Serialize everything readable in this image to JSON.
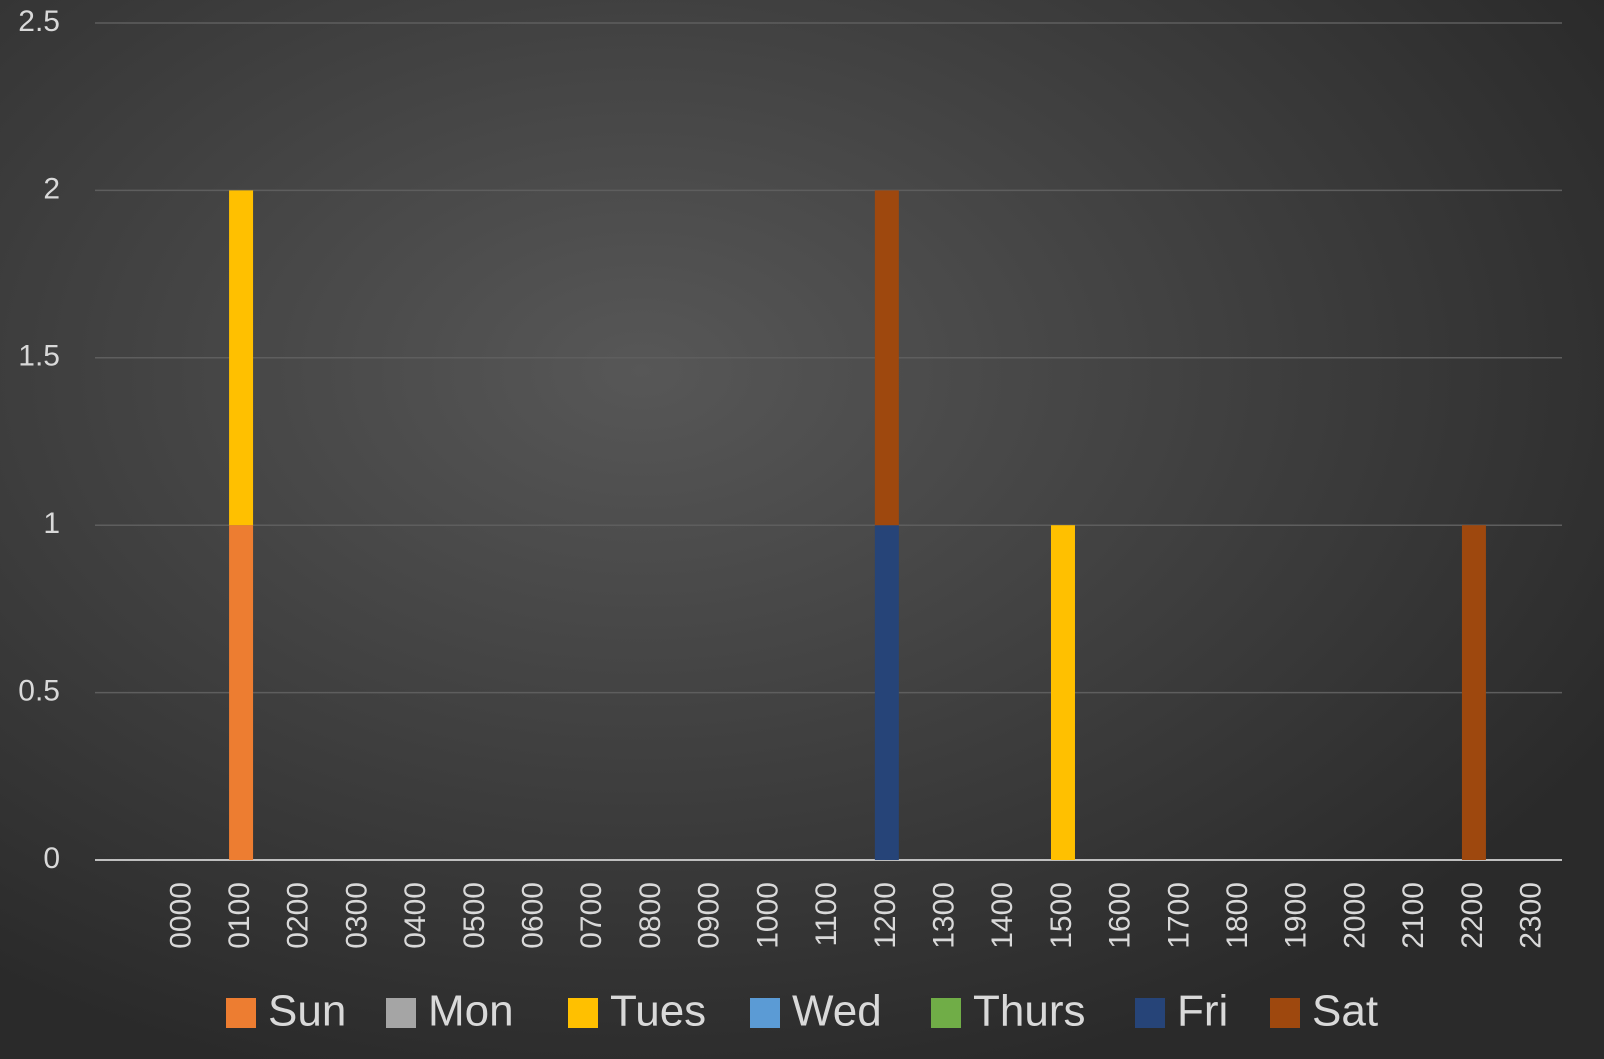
{
  "chart_data": {
    "type": "stacked_bar",
    "categories": [
      "0000",
      "0100",
      "0200",
      "0300",
      "0400",
      "0500",
      "0600",
      "0700",
      "0800",
      "0900",
      "1000",
      "1100",
      "1200",
      "1300",
      "1400",
      "1500",
      "1600",
      "1700",
      "1800",
      "1900",
      "2000",
      "2100",
      "2200",
      "2300"
    ],
    "series": [
      {
        "name": "Sun",
        "color": "#ed7d31",
        "values": [
          0,
          1,
          0,
          0,
          0,
          0,
          0,
          0,
          0,
          0,
          0,
          0,
          0,
          0,
          0,
          0,
          0,
          0,
          0,
          0,
          0,
          0,
          0,
          0
        ]
      },
      {
        "name": "Mon",
        "color": "#a5a5a5",
        "values": [
          0,
          0,
          0,
          0,
          0,
          0,
          0,
          0,
          0,
          0,
          0,
          0,
          0,
          0,
          0,
          0,
          0,
          0,
          0,
          0,
          0,
          0,
          0,
          0
        ]
      },
      {
        "name": "Tues",
        "color": "#ffc000",
        "values": [
          0,
          1,
          0,
          0,
          0,
          0,
          0,
          0,
          0,
          0,
          0,
          0,
          0,
          0,
          0,
          1,
          0,
          0,
          0,
          0,
          0,
          0,
          0,
          0
        ]
      },
      {
        "name": "Wed",
        "color": "#5b9bd5",
        "values": [
          0,
          0,
          0,
          0,
          0,
          0,
          0,
          0,
          0,
          0,
          0,
          0,
          0,
          0,
          0,
          0,
          0,
          0,
          0,
          0,
          0,
          0,
          0,
          0
        ]
      },
      {
        "name": "Thurs",
        "color": "#70ad47",
        "values": [
          0,
          0,
          0,
          0,
          0,
          0,
          0,
          0,
          0,
          0,
          0,
          0,
          0,
          0,
          0,
          0,
          0,
          0,
          0,
          0,
          0,
          0,
          0,
          0
        ]
      },
      {
        "name": "Fri",
        "color": "#264478",
        "values": [
          0,
          0,
          0,
          0,
          0,
          0,
          0,
          0,
          0,
          0,
          0,
          0,
          1,
          0,
          0,
          0,
          0,
          0,
          0,
          0,
          0,
          0,
          0,
          0
        ]
      },
      {
        "name": "Sat",
        "color": "#9e480e",
        "values": [
          0,
          0,
          0,
          0,
          0,
          0,
          0,
          0,
          0,
          0,
          0,
          0,
          1,
          0,
          0,
          0,
          0,
          0,
          0,
          0,
          0,
          0,
          1,
          0
        ]
      }
    ],
    "ylim": [
      0,
      2.5
    ],
    "yticks": [
      0,
      0.5,
      1,
      1.5,
      2,
      2.5
    ],
    "grid": true,
    "legend": "bottom"
  }
}
